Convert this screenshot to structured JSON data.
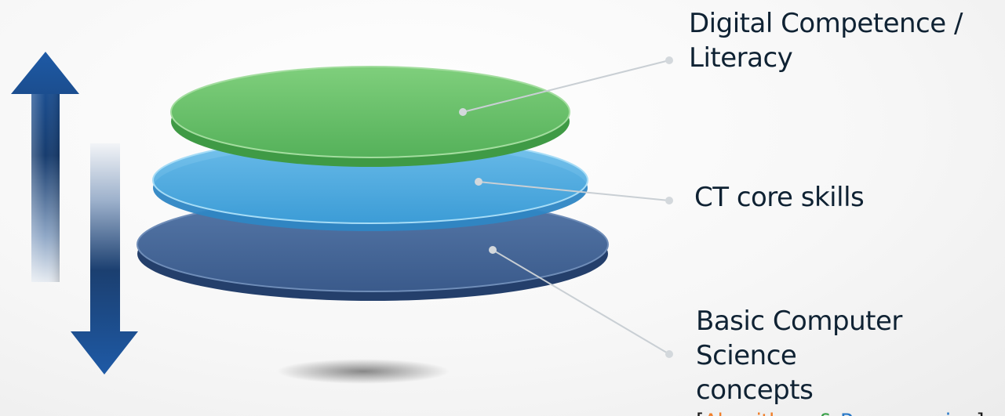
{
  "layers": [
    {
      "id": "top",
      "label_lines": [
        "Digital Competence /",
        "Literacy"
      ],
      "color": "#5cb85f"
    },
    {
      "id": "middle",
      "label_lines": [
        "CT core skills"
      ],
      "color": "#4aa8df"
    },
    {
      "id": "bottom",
      "label_lines": [
        "Basic Computer Science",
        "concepts"
      ],
      "sub_label": {
        "open_bracket": "[",
        "algorithms": "Algorithms",
        "ampersand": "&",
        "programming": "Programming",
        "close_bracket": "]"
      },
      "color": "#3b5d8e"
    }
  ],
  "colors": {
    "algorithms_text": "#f07f2a",
    "ampersand_text": "#3aa14a",
    "programming_text": "#2979c8",
    "arrow_dark": "#1d4d8a",
    "leader_line": "#c9cfd4"
  },
  "icons": {
    "up_arrow": "arrow-up-icon",
    "down_arrow": "arrow-down-icon"
  }
}
